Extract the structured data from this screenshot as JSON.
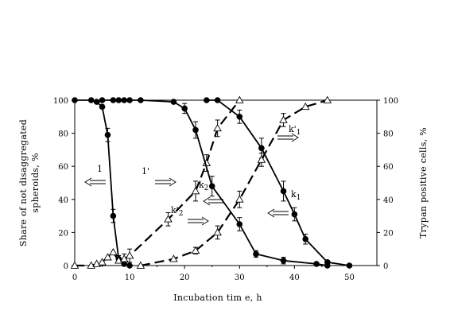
{
  "chart_data": {
    "type": "line",
    "xlabel": "Incubation tim e, h",
    "ylabel_left": [
      "Share of not disaggregated",
      "spheroids, %"
    ],
    "ylabel_right": "Trypan positive cells, %",
    "xlim": [
      0,
      55
    ],
    "ylim_left": [
      0,
      100
    ],
    "ylim_right": [
      0,
      100
    ],
    "xticks": [
      0,
      10,
      20,
      30,
      40,
      50
    ],
    "yticks": [
      0,
      20,
      40,
      60,
      80,
      100
    ],
    "grid": false,
    "legend": "none",
    "series": [
      {
        "marker": "filled-circle",
        "line": "solid",
        "axis": "left",
        "x": [
          0,
          3,
          4,
          5,
          6,
          7,
          8,
          9,
          10
        ],
        "y": [
          100,
          100,
          99,
          96,
          79,
          30,
          4,
          1,
          0
        ],
        "err": [
          0,
          0,
          0,
          0,
          4,
          4,
          2,
          0,
          0
        ]
      },
      {
        "marker": "open-triangle",
        "line": "dashed",
        "axis": "right",
        "x": [
          0,
          3,
          4,
          5,
          6,
          7,
          8,
          9,
          10,
          17,
          22,
          24,
          26,
          30
        ],
        "y": [
          0,
          0,
          1,
          2,
          5,
          8,
          3,
          4,
          6,
          28,
          45,
          62,
          83,
          100
        ],
        "err": [
          0,
          0,
          0,
          0,
          0,
          0,
          0,
          3,
          4,
          4,
          6,
          5,
          5,
          0
        ]
      },
      {
        "marker": "filled-circle",
        "line": "solid",
        "axis": "left",
        "x": [
          5,
          7,
          8,
          9,
          10,
          12,
          18,
          20,
          22,
          25,
          30,
          33,
          38,
          44,
          46
        ],
        "y": [
          100,
          100,
          100,
          100,
          100,
          100,
          99,
          95,
          82,
          48,
          25,
          7,
          3,
          1,
          0
        ],
        "err": [
          0,
          0,
          0,
          0,
          0,
          0,
          0,
          3,
          5,
          6,
          4,
          2,
          2,
          0,
          0
        ]
      },
      {
        "marker": "filled-circle",
        "line": "solid",
        "axis": "left",
        "x": [
          24,
          26,
          30,
          34,
          38,
          40,
          42,
          46,
          50
        ],
        "y": [
          100,
          100,
          90,
          71,
          45,
          31,
          16,
          2,
          0
        ],
        "err": [
          0,
          0,
          4,
          6,
          6,
          4,
          3,
          1,
          0
        ]
      },
      {
        "marker": "open-triangle",
        "line": "dashed",
        "axis": "right",
        "x": [
          12,
          18,
          22,
          26,
          30,
          34,
          38,
          42,
          46
        ],
        "y": [
          0,
          4,
          9,
          20,
          40,
          64,
          88,
          96,
          100
        ],
        "err": [
          0,
          0,
          2,
          4,
          5,
          4,
          4,
          0,
          0
        ]
      }
    ],
    "annotations": [
      {
        "text": "1",
        "arrow": "left"
      },
      {
        "text": "1'",
        "arrow": "right"
      },
      {
        "text": "k2",
        "arrow": "left"
      },
      {
        "text": "k'2",
        "arrow": "right"
      },
      {
        "text": "k1",
        "arrow": "left"
      },
      {
        "text": "k'1",
        "arrow": "right"
      }
    ]
  }
}
